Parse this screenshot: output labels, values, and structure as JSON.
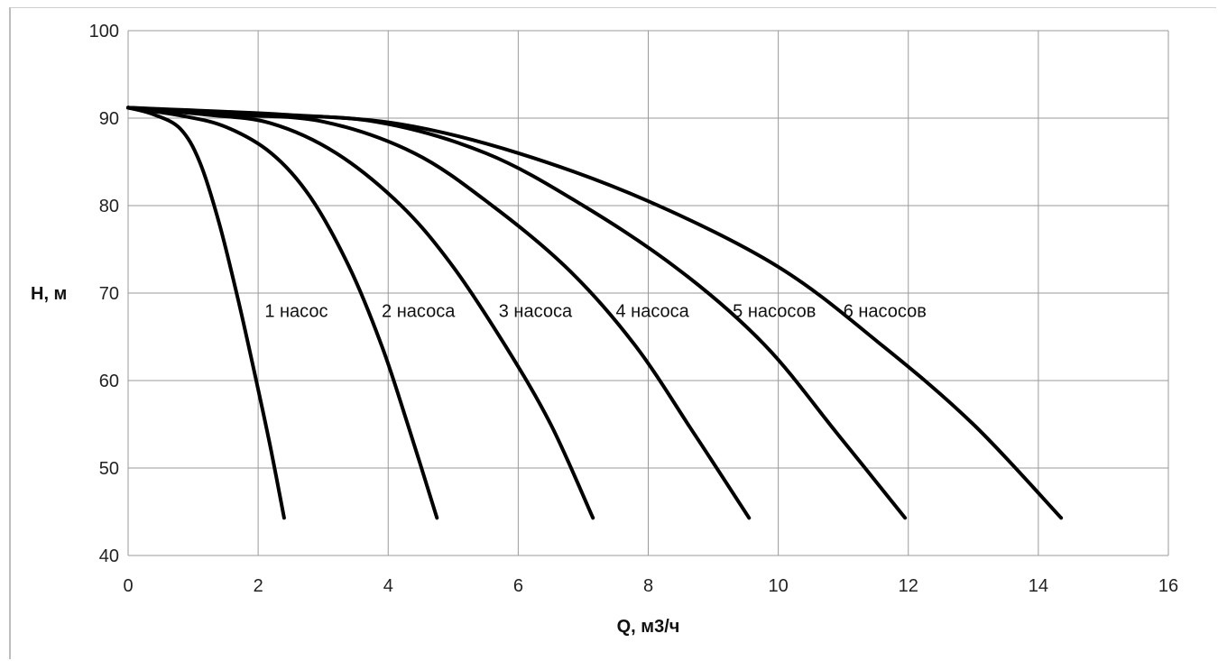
{
  "chart_data": {
    "type": "line",
    "title": "",
    "xlabel": "Q, м3/ч",
    "ylabel": "H, м",
    "xlim": [
      0,
      16
    ],
    "ylim": [
      40,
      100
    ],
    "x_ticks": [
      0,
      2,
      4,
      6,
      8,
      10,
      12,
      14,
      16
    ],
    "y_ticks": [
      40,
      50,
      60,
      70,
      80,
      90,
      100
    ],
    "grid": true,
    "legend": "none",
    "series": [
      {
        "name": "1 насос",
        "label_at": [
          2.1,
          68
        ],
        "points": [
          [
            0,
            91.2
          ],
          [
            0.4,
            90.4
          ],
          [
            0.8,
            88.8
          ],
          [
            1.1,
            85
          ],
          [
            1.4,
            78
          ],
          [
            1.7,
            69
          ],
          [
            2.0,
            59
          ],
          [
            2.2,
            52
          ],
          [
            2.4,
            44.3
          ]
        ]
      },
      {
        "name": "2 насоса",
        "label_at": [
          3.9,
          68
        ],
        "points": [
          [
            0,
            91.2
          ],
          [
            0.8,
            90.3
          ],
          [
            1.5,
            89.0
          ],
          [
            2.2,
            86
          ],
          [
            2.8,
            81
          ],
          [
            3.4,
            73
          ],
          [
            3.9,
            64
          ],
          [
            4.3,
            55
          ],
          [
            4.75,
            44.3
          ]
        ]
      },
      {
        "name": "3 насоса",
        "label_at": [
          5.7,
          68
        ],
        "points": [
          [
            0,
            91.2
          ],
          [
            1.2,
            90.4
          ],
          [
            2.2,
            89.4
          ],
          [
            3.2,
            86
          ],
          [
            4.2,
            80
          ],
          [
            5.0,
            73
          ],
          [
            5.8,
            64
          ],
          [
            6.5,
            55
          ],
          [
            7.15,
            44.3
          ]
        ]
      },
      {
        "name": "4 насоса",
        "label_at": [
          7.5,
          68
        ],
        "points": [
          [
            0,
            91.2
          ],
          [
            1.6,
            90.4
          ],
          [
            3.0,
            89.6
          ],
          [
            4.4,
            86
          ],
          [
            5.6,
            80
          ],
          [
            6.8,
            72.5
          ],
          [
            7.8,
            64
          ],
          [
            8.7,
            54
          ],
          [
            9.55,
            44.3
          ]
        ]
      },
      {
        "name": "5 насосов",
        "label_at": [
          9.3,
          68
        ],
        "points": [
          [
            0,
            91.2
          ],
          [
            2.0,
            90.4
          ],
          [
            3.8,
            89.6
          ],
          [
            5.5,
            86
          ],
          [
            7.0,
            80
          ],
          [
            8.5,
            72.5
          ],
          [
            9.8,
            64
          ],
          [
            10.9,
            54
          ],
          [
            11.95,
            44.3
          ]
        ]
      },
      {
        "name": "6 насосов",
        "label_at": [
          11.0,
          68
        ],
        "points": [
          [
            0,
            91.2
          ],
          [
            2.4,
            90.4
          ],
          [
            4.2,
            89.3
          ],
          [
            6.0,
            86
          ],
          [
            8.0,
            80.5
          ],
          [
            10.0,
            73
          ],
          [
            11.6,
            64
          ],
          [
            13.0,
            55
          ],
          [
            14.35,
            44.3
          ]
        ]
      }
    ]
  }
}
